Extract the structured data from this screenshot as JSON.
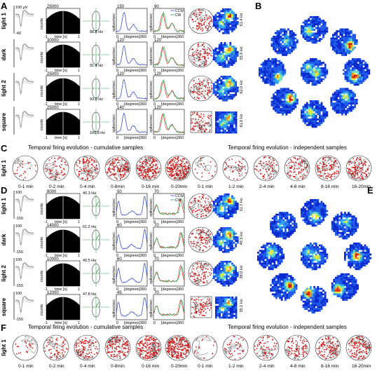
{
  "panels": {
    "A": "A",
    "B": "B",
    "C": "C",
    "D": "D",
    "E": "E",
    "F": "F"
  },
  "conditions": [
    "light 1",
    "dark",
    "light 2",
    "square"
  ],
  "panel_A": {
    "waveform_scale": {
      "top": "100 μV",
      "bottom": "-40"
    },
    "hist_ytop": [
      "25000",
      "30000",
      "25000",
      "25000"
    ],
    "hist_ylabel": "counts",
    "hist_xlabel": {
      "left": "-1",
      "mid": "time [s]",
      "right": "1"
    },
    "polar_rate": [
      "88.8 Hz",
      "91.4 Hz",
      "93.0 Hz",
      "109.8 Hz"
    ],
    "tuning_ytop": [
      "150",
      "120",
      "120",
      "140"
    ],
    "tuning_ylabel": "spikes/sec",
    "tuning_x": {
      "left": "0",
      "mid": "[degrees]",
      "right": "360"
    },
    "dir_ytop": [
      "90",
      "120",
      "120",
      "120"
    ],
    "dir_legend": [
      "CCW",
      "CW"
    ],
    "map_rate": [
      "51.4 Hz",
      "55.9 Hz",
      "62.0 Hz",
      "81.0 Hz"
    ]
  },
  "panel_D": {
    "waveform_scale": {
      "top": "100",
      "bottom": "-150"
    },
    "hist_ytop": [
      "8000",
      "14000",
      "10000",
      "12000"
    ],
    "hist_ylabel": "counts",
    "hist_xlabel": {
      "left": "-1",
      "mid": "time [s]",
      "right": "1"
    },
    "polar_rate": [
      "40.3 Hz",
      "61.2 Hz",
      "49.5 Hz",
      "47.8 Hz"
    ],
    "tuning_ytop": [
      "50",
      "60",
      "60",
      "45"
    ],
    "tuning_ylabel": "spikes/sec",
    "tuning_x": {
      "left": "0",
      "mid": "[degrees]",
      "right": "360"
    },
    "dir_ytop": [
      "70",
      "70",
      "70",
      "70"
    ],
    "dir_legend": [
      "CCW",
      "CW"
    ],
    "map_rate": [
      "31.7 Hz",
      "49.3 Hz",
      "38.0 Hz",
      "35.1 Hz"
    ]
  },
  "panel_C": {
    "row_label": "light 1",
    "cumulative_title": "Temporal firing evolution - cumulative samples",
    "independent_title": "Temporal firing evolution - independent samples",
    "cumulative": [
      "0-1 min",
      "0-2 min",
      "0-4 min",
      "0-8min",
      "0-16 min",
      "0-20min"
    ],
    "independent": [
      "0-1 min",
      "1-2 min",
      "2-4 min",
      "4-8 min",
      "8-16 min",
      "16-20min"
    ]
  },
  "panel_F": {
    "row_label": "light 1",
    "cumulative_title": "Temporal firing evolution - cumulative samples",
    "independent_title": "Temporal firing evolution - independent samples",
    "cumulative": [
      "0-1 min",
      "0-2 min",
      "0-4 min",
      "0-8min",
      "0-16 min",
      "0-20min"
    ],
    "independent": [
      "0-1 min",
      "1-2 min",
      "2-4 min",
      "4-8 min",
      "8-16 min",
      "16-20min"
    ]
  },
  "colors": {
    "ccw": "#3a4fd0",
    "cw": "#d83a3a",
    "green": "#2aa84a",
    "trace": "#d01a1a",
    "map_blue": "#1030c8"
  }
}
